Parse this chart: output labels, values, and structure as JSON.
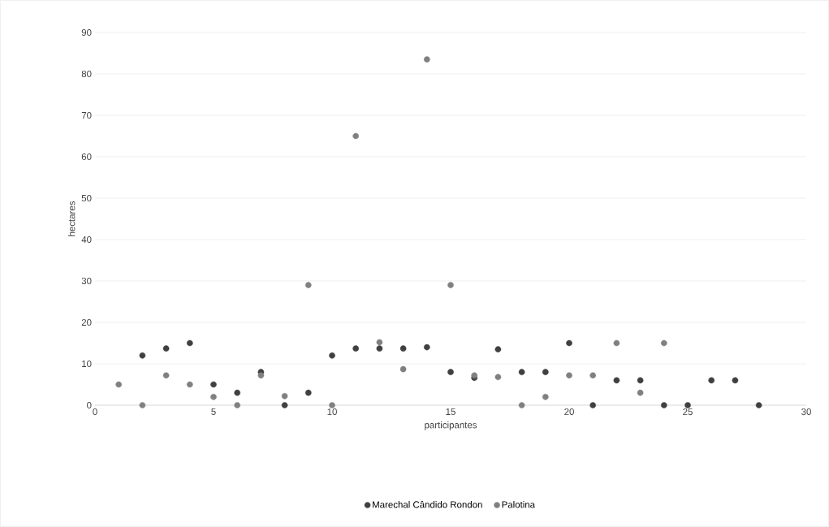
{
  "chart_data": {
    "type": "scatter",
    "xlabel": "participantes",
    "ylabel": "hectares",
    "xlim": [
      0,
      30
    ],
    "ylim": [
      0,
      90
    ],
    "xticks": [
      0,
      5,
      10,
      15,
      20,
      25,
      30
    ],
    "yticks": [
      0,
      10,
      20,
      30,
      40,
      50,
      60,
      70,
      80,
      90
    ],
    "grid": "y",
    "legend": "bottom",
    "marker": "circle",
    "series": [
      {
        "name": "Marechal Cândido Rondon",
        "color": "#404040",
        "x": [
          2,
          3,
          4,
          5,
          6,
          7,
          8,
          9,
          10,
          11,
          12,
          13,
          14,
          15,
          16,
          17,
          18,
          19,
          20,
          21,
          22,
          23,
          24,
          25,
          26,
          27,
          28
        ],
        "values": [
          12,
          13.7,
          15,
          5,
          3,
          8,
          0,
          3,
          12,
          13.7,
          13.7,
          13.7,
          14,
          8,
          6.6,
          13.5,
          8,
          8,
          15,
          0,
          6,
          6,
          0,
          0,
          6,
          6,
          0
        ]
      },
      {
        "name": "Palotina",
        "color": "#808080",
        "x": [
          1,
          2,
          3,
          4,
          5,
          6,
          7,
          8,
          9,
          10,
          11,
          12,
          13,
          14,
          15,
          16,
          17,
          18,
          19,
          20,
          21,
          22,
          23,
          24
        ],
        "values": [
          5,
          0,
          7.2,
          5,
          2,
          0,
          7.2,
          2.2,
          29,
          0,
          65,
          15.2,
          8.7,
          83.5,
          29,
          7.2,
          6.8,
          0,
          2,
          7.2,
          7.2,
          15,
          3,
          15
        ]
      }
    ]
  }
}
